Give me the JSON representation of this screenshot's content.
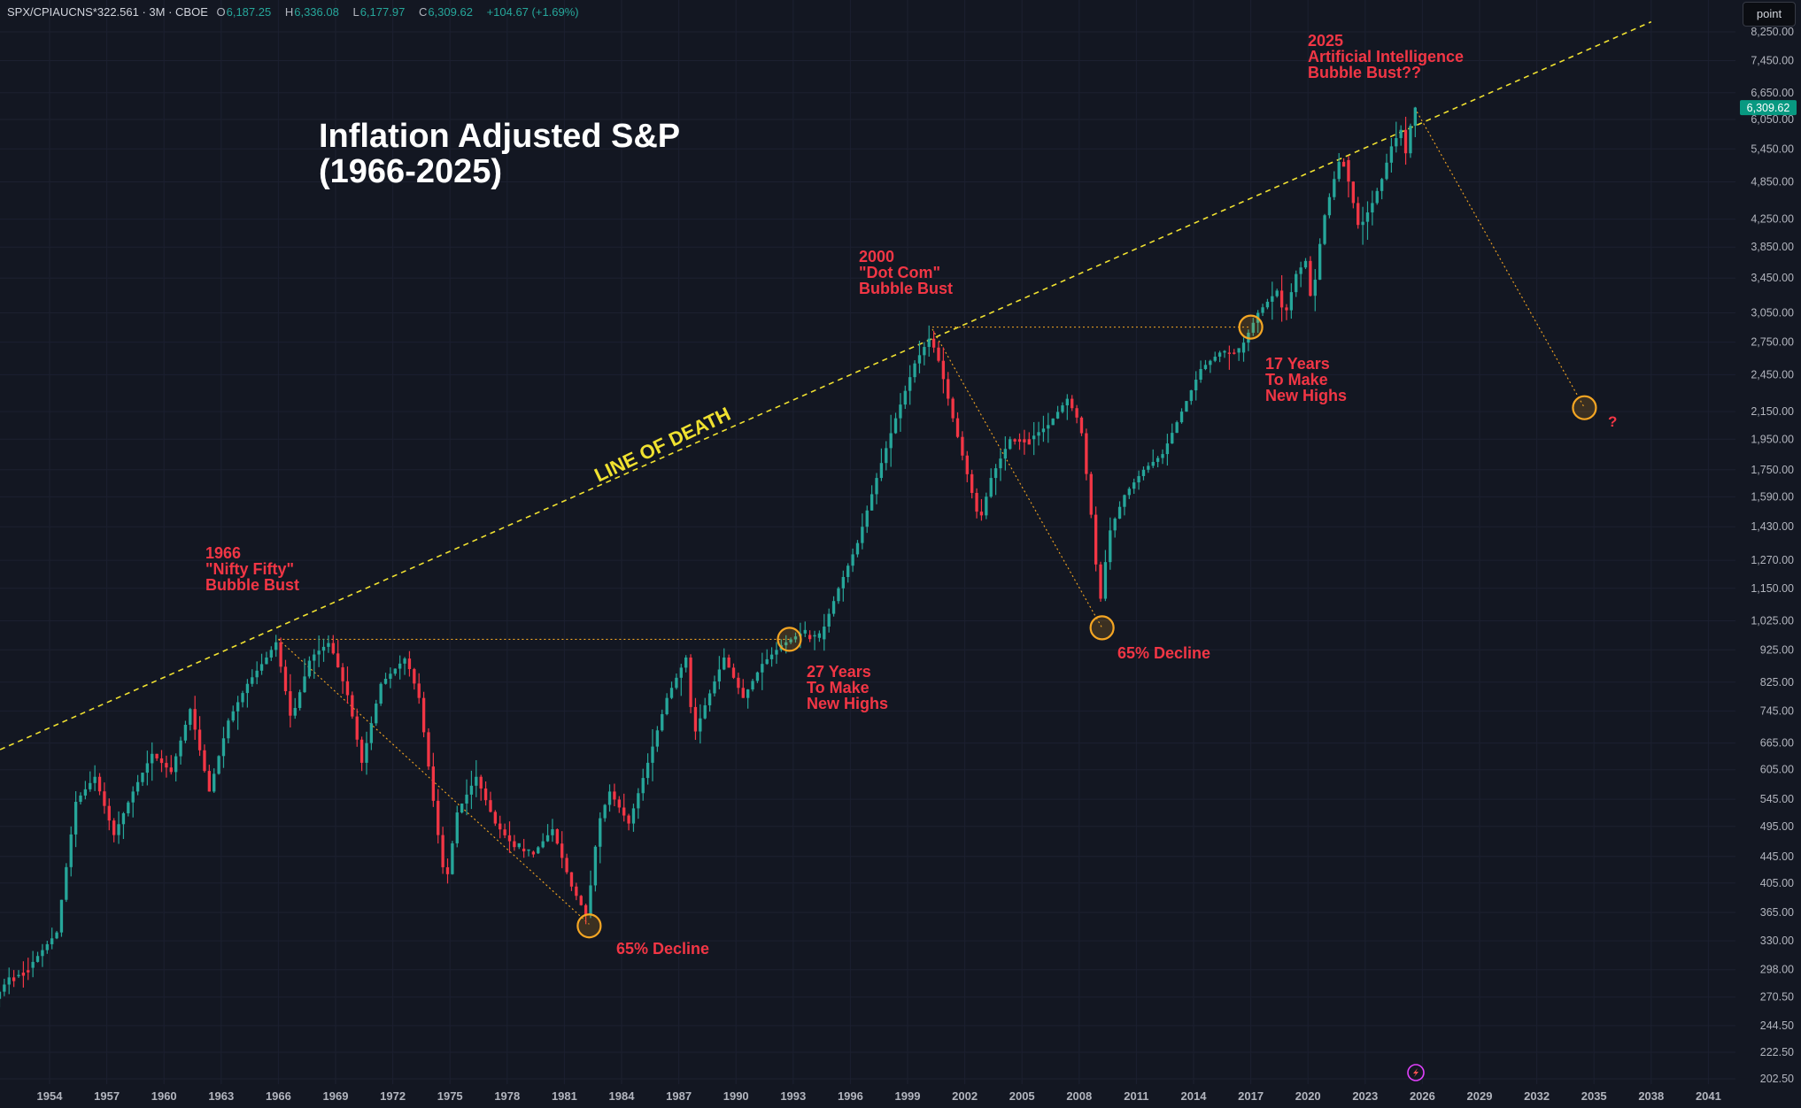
{
  "header": {
    "symbol": "SPX/CPIAUCNS*322.561 · 3M · CBOE",
    "o_label": "O",
    "o_value": "6,187.25",
    "h_label": "H",
    "h_value": "6,336.08",
    "l_label": "L",
    "l_value": "6,177.97",
    "c_label": "C",
    "c_value": "6,309.62",
    "change": "+104.67 (+1.69%)"
  },
  "toolbar": {
    "point_label": "point"
  },
  "title": {
    "line1": "Inflation Adjusted S&P",
    "line2": "(1966-2025)"
  },
  "annotations": {
    "a1966": {
      "l1": "1966",
      "l2": "\"Nifty Fifty\"",
      "l3": "Bubble Bust"
    },
    "a2000": {
      "l1": "2000",
      "l2": "\"Dot Com\"",
      "l3": "Bubble Bust"
    },
    "a2025": {
      "l1": "2025",
      "l2": "Artificial Intelligence",
      "l3": "Bubble Bust??"
    },
    "decline1": "65% Decline",
    "decline2": "65% Decline",
    "y27": {
      "l1": "27 Years",
      "l2": "To Make",
      "l3": "New Highs"
    },
    "y17": {
      "l1": "17 Years",
      "l2": "To Make",
      "l3": "New Highs"
    },
    "line_of_death": "LINE OF DEATH",
    "question": "?"
  },
  "colors": {
    "background": "#131722",
    "up": "#26a69a",
    "down": "#f23645",
    "trendline": "#f0e130",
    "dotted": "#f5a623",
    "annotation": "#f23645",
    "price_tag": "#089981"
  },
  "chart_data": {
    "type": "candlestick",
    "title": "Inflation Adjusted S&P (1966-2025)",
    "xlabel": "",
    "ylabel": "",
    "scale": "log",
    "x_ticks": [
      "1954",
      "1957",
      "1960",
      "1963",
      "1966",
      "1969",
      "1972",
      "1975",
      "1978",
      "1981",
      "1984",
      "1987",
      "1990",
      "1993",
      "1996",
      "1999",
      "2002",
      "2005",
      "2008",
      "2011",
      "2014",
      "2017",
      "2020",
      "2023",
      "2026",
      "2029",
      "2032",
      "2035",
      "2038",
      "2041"
    ],
    "y_ticks": [
      "202.50",
      "222.50",
      "244.50",
      "270.50",
      "298.00",
      "330.00",
      "365.00",
      "405.00",
      "445.00",
      "495.00",
      "545.00",
      "605.00",
      "665.00",
      "745.00",
      "825.00",
      "925.00",
      "1,025.00",
      "1,150.00",
      "1,270.00",
      "1,430.00",
      "1,590.00",
      "1,750.00",
      "1,950.00",
      "2,150.00",
      "2,450.00",
      "2,750.00",
      "3,050.00",
      "3,450.00",
      "3,850.00",
      "4,250.00",
      "4,850.00",
      "5,450.00",
      "6,050.00",
      "6,650.00",
      "7,450.00",
      "8,250.00"
    ],
    "last_price": "6,309.62",
    "anchors": [
      [
        1951.0,
        262
      ],
      [
        1952.0,
        290
      ],
      [
        1953.0,
        300
      ],
      [
        1954.5,
        340
      ],
      [
        1955.5,
        540
      ],
      [
        1956.5,
        590
      ],
      [
        1957.5,
        480
      ],
      [
        1958.5,
        560
      ],
      [
        1959.5,
        640
      ],
      [
        1960.5,
        600
      ],
      [
        1961.5,
        750
      ],
      [
        1962.5,
        560
      ],
      [
        1963.5,
        720
      ],
      [
        1964.5,
        820
      ],
      [
        1965.5,
        900
      ],
      [
        1966.0,
        950
      ],
      [
        1966.8,
        720
      ],
      [
        1967.8,
        900
      ],
      [
        1968.8,
        950
      ],
      [
        1969.8,
        780
      ],
      [
        1970.5,
        620
      ],
      [
        1971.5,
        820
      ],
      [
        1972.8,
        900
      ],
      [
        1973.5,
        780
      ],
      [
        1974.5,
        480
      ],
      [
        1974.9,
        400
      ],
      [
        1975.5,
        520
      ],
      [
        1976.5,
        590
      ],
      [
        1977.5,
        500
      ],
      [
        1978.5,
        460
      ],
      [
        1979.5,
        450
      ],
      [
        1980.5,
        490
      ],
      [
        1981.5,
        400
      ],
      [
        1982.3,
        360
      ],
      [
        1982.9,
        500
      ],
      [
        1983.5,
        560
      ],
      [
        1984.5,
        500
      ],
      [
        1985.5,
        620
      ],
      [
        1986.5,
        780
      ],
      [
        1987.5,
        900
      ],
      [
        1987.9,
        680
      ],
      [
        1988.5,
        760
      ],
      [
        1989.5,
        900
      ],
      [
        1990.5,
        780
      ],
      [
        1991.5,
        880
      ],
      [
        1992.5,
        940
      ],
      [
        1993.5,
        980
      ],
      [
        1994.5,
        960
      ],
      [
        1995.5,
        1150
      ],
      [
        1996.5,
        1350
      ],
      [
        1997.5,
        1700
      ],
      [
        1998.5,
        2100
      ],
      [
        1999.5,
        2550
      ],
      [
        2000.3,
        2800
      ],
      [
        2000.8,
        2550
      ],
      [
        2001.5,
        2100
      ],
      [
        2002.3,
        1700
      ],
      [
        2002.9,
        1450
      ],
      [
        2003.5,
        1700
      ],
      [
        2004.5,
        1950
      ],
      [
        2005.5,
        1950
      ],
      [
        2006.5,
        2050
      ],
      [
        2007.5,
        2250
      ],
      [
        2008.2,
        2050
      ],
      [
        2008.8,
        1450
      ],
      [
        2009.2,
        1080
      ],
      [
        2009.7,
        1400
      ],
      [
        2010.5,
        1600
      ],
      [
        2011.5,
        1750
      ],
      [
        2012.5,
        1850
      ],
      [
        2013.5,
        2150
      ],
      [
        2014.5,
        2500
      ],
      [
        2015.5,
        2650
      ],
      [
        2016.5,
        2650
      ],
      [
        2017.5,
        3050
      ],
      [
        2018.5,
        3300
      ],
      [
        2018.9,
        3000
      ],
      [
        2019.5,
        3500
      ],
      [
        2020.1,
        3700
      ],
      [
        2020.3,
        3100
      ],
      [
        2020.9,
        4200
      ],
      [
        2021.5,
        4900
      ],
      [
        2021.9,
        5400
      ],
      [
        2022.5,
        4500
      ],
      [
        2022.8,
        4100
      ],
      [
        2023.5,
        4500
      ],
      [
        2024.0,
        4900
      ],
      [
        2024.5,
        5500
      ],
      [
        2025.1,
        5900
      ],
      [
        2025.3,
        5200
      ],
      [
        2025.6,
        6310
      ]
    ],
    "trendline": {
      "from": [
        1950.0,
        623
      ],
      "to": [
        2038.0,
        8550
      ]
    },
    "dotted_projection": [
      [
        2025.6,
        6300
      ],
      [
        2034.5,
        2180
      ]
    ]
  }
}
